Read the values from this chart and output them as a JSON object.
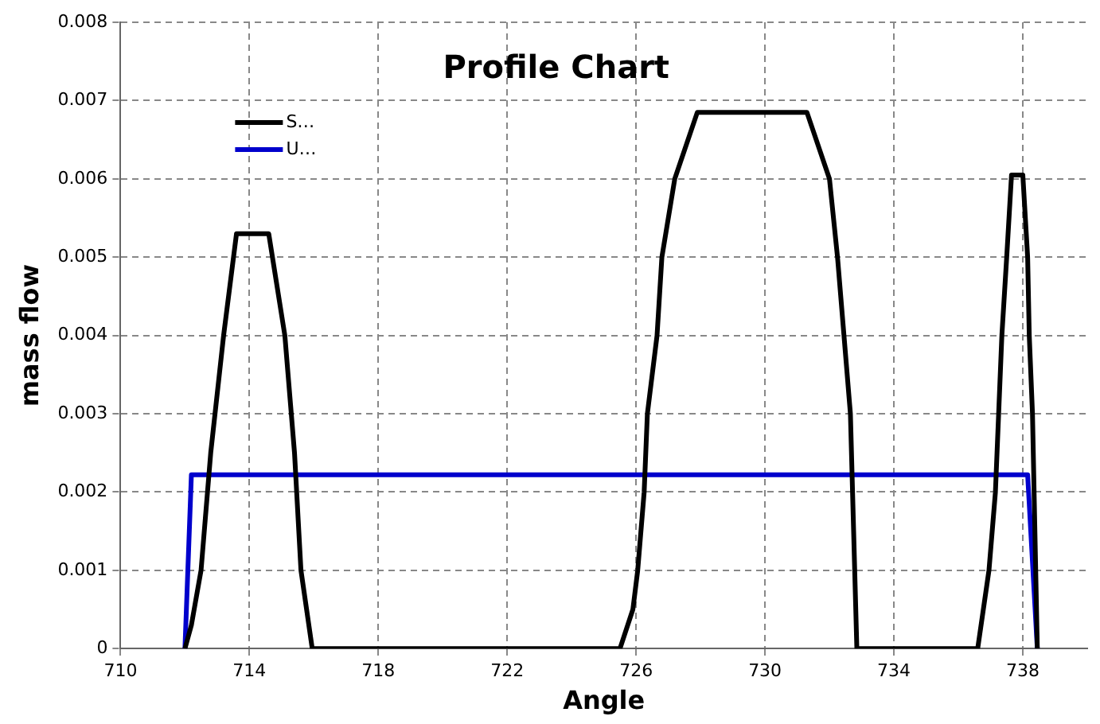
{
  "chart_data": {
    "type": "line",
    "title": "Profile Chart",
    "xlabel": "Angle",
    "ylabel": "mass flow",
    "xlim": [
      710,
      740
    ],
    "xticks": [
      710,
      714,
      718,
      722,
      726,
      730,
      734,
      738
    ],
    "ylim": [
      0,
      0.008
    ],
    "yticks": [
      0,
      0.001,
      0.002,
      0.003,
      0.004,
      0.005,
      0.006,
      0.007,
      0.008
    ],
    "grid": true,
    "legend": "top left",
    "marker": "none",
    "line_style": "solid",
    "series": [
      {
        "name": "S…",
        "color": "#000000",
        "x": [
          712.0,
          712.2,
          712.5,
          712.8,
          713.2,
          713.6,
          714.6,
          715.1,
          715.4,
          715.6,
          715.95,
          725.5,
          725.9,
          726.05,
          726.25,
          726.35,
          726.65,
          726.8,
          727.2,
          727.9,
          731.3,
          732.0,
          732.25,
          732.45,
          732.65,
          732.75,
          732.85,
          736.6,
          736.95,
          737.15,
          737.35,
          737.5,
          737.65,
          738.0,
          738.15,
          738.2,
          738.3,
          738.4,
          738.45
        ],
        "values": [
          0,
          0.0003,
          0.001,
          0.0025,
          0.004,
          0.0053,
          0.0053,
          0.004,
          0.0025,
          0.001,
          0,
          0,
          0.0005,
          0.001,
          0.002,
          0.003,
          0.004,
          0.005,
          0.006,
          0.00685,
          0.00685,
          0.006,
          0.005,
          0.004,
          0.003,
          0.0015,
          0,
          0,
          0.001,
          0.002,
          0.004,
          0.005,
          0.00605,
          0.00605,
          0.005,
          0.004,
          0.003,
          0.001,
          0
        ]
      },
      {
        "name": "U…",
        "color": "#0000cc",
        "x": [
          712.0,
          712.2,
          738.15,
          738.45
        ],
        "values": [
          0,
          0.00222,
          0.00222,
          0
        ]
      }
    ]
  }
}
